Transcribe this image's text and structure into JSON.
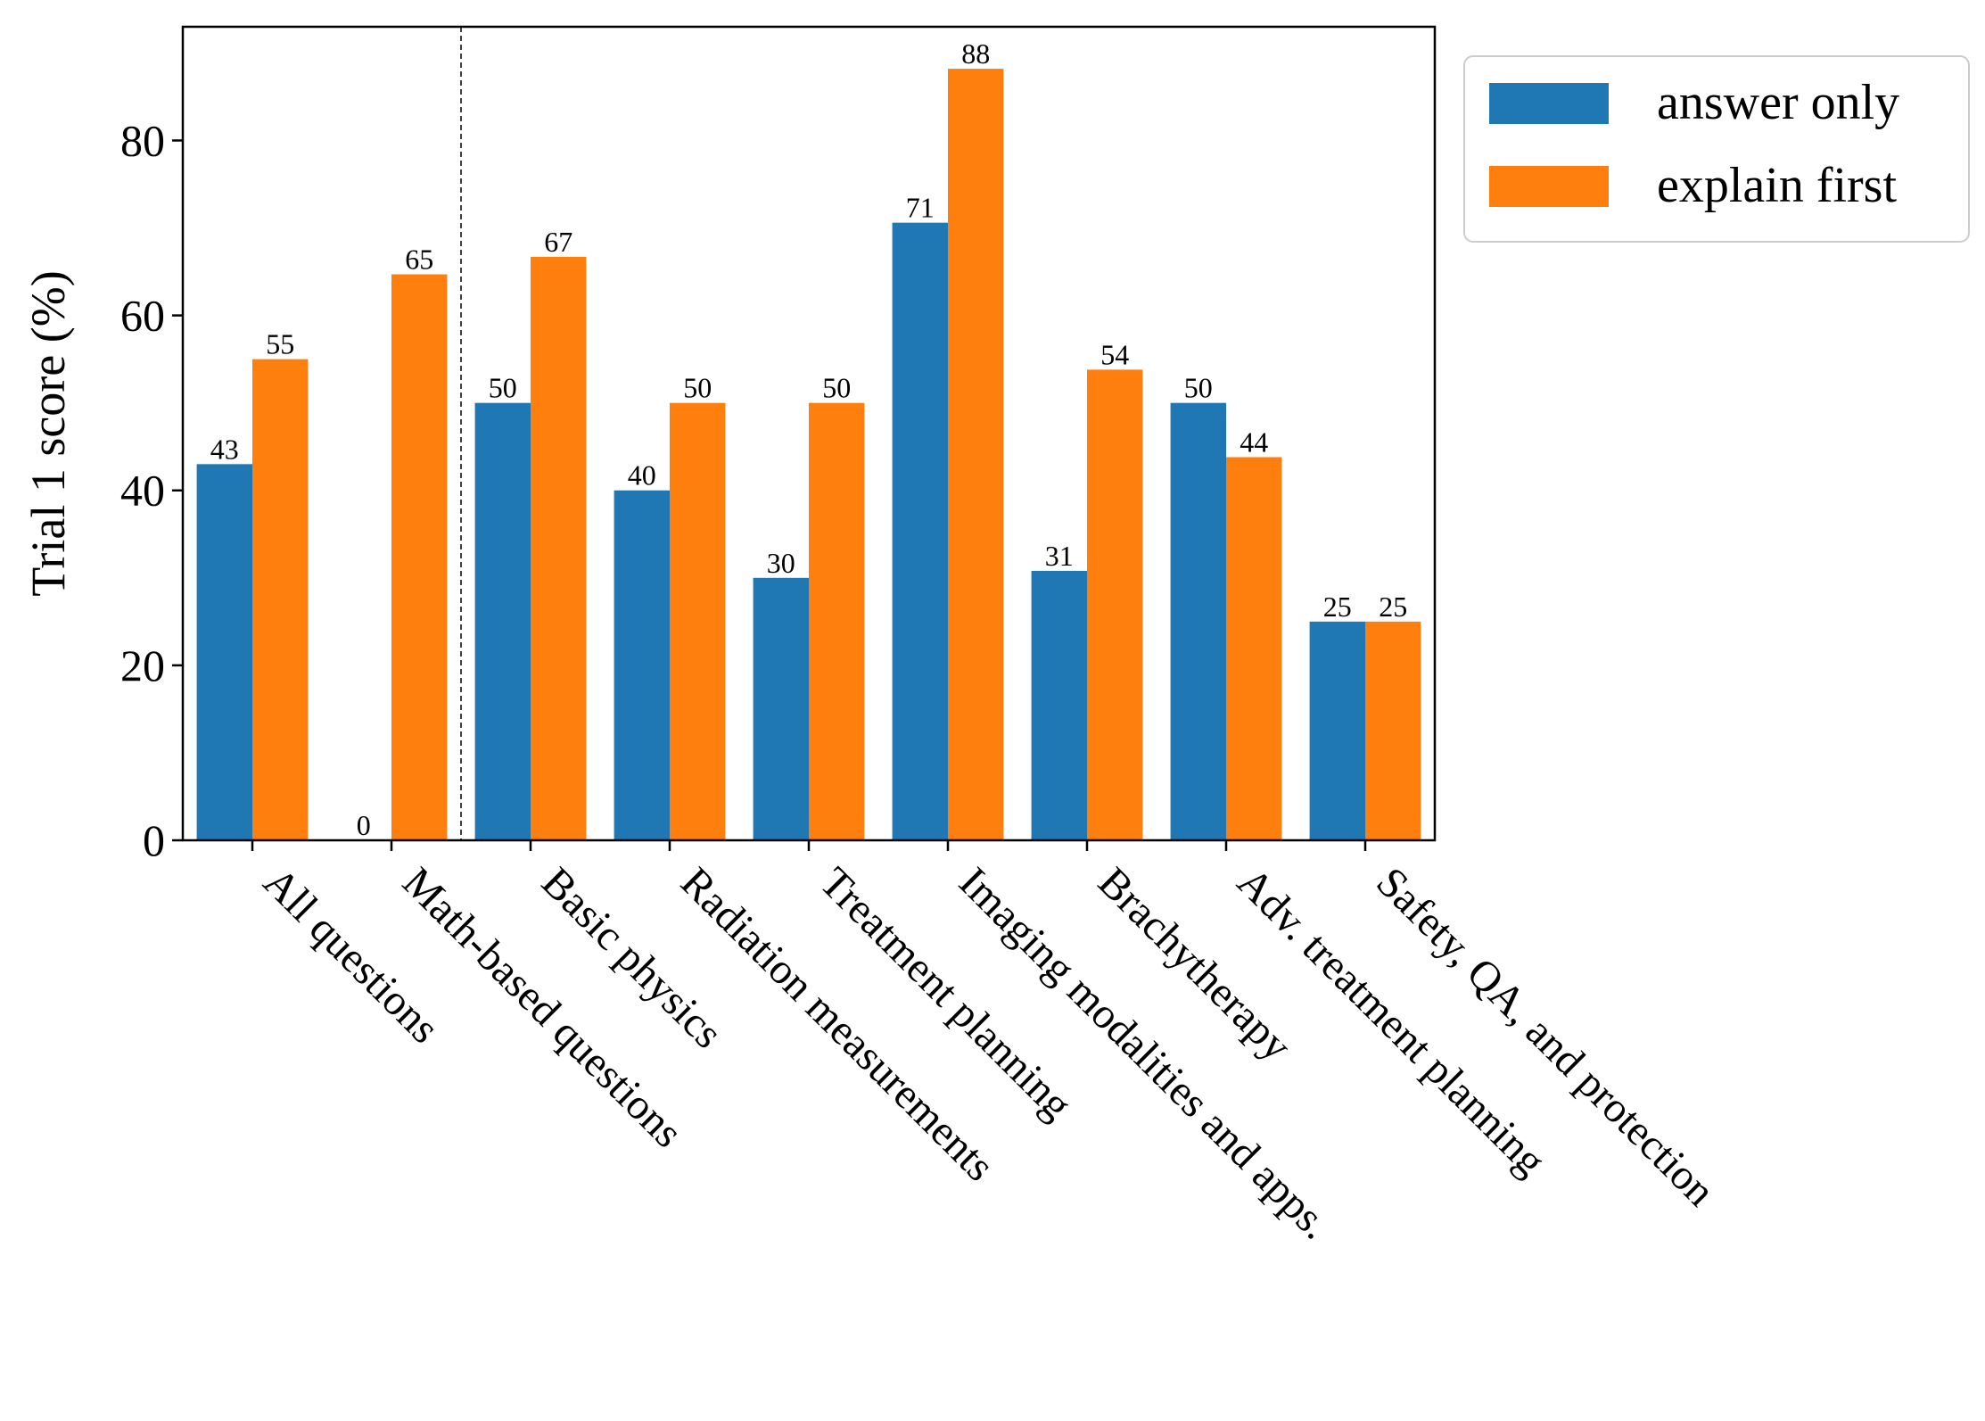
{
  "chart_data": {
    "type": "bar",
    "ylabel": "Trial 1 score (%)",
    "xlabel": "",
    "title": "",
    "ylim": [
      0,
      93
    ],
    "yticks": [
      0,
      20,
      40,
      60,
      80
    ],
    "grid": false,
    "legend_position": "outside-top-right",
    "categories": [
      "All questions",
      "Math-based questions",
      "Basic physics",
      "Radiation measurements",
      "Treatment planning",
      "Imaging modalities and apps.",
      "Brachytherapy",
      "Adv. treatment planning",
      "Safety, QA, and protection"
    ],
    "separator_after_category_index": 1,
    "series": [
      {
        "name": "answer only",
        "color": "#1f77b4",
        "values": [
          43,
          0,
          50,
          40,
          30,
          70.6,
          30.8,
          50,
          25
        ],
        "labels": [
          "43",
          "0",
          "50",
          "40",
          "30",
          "71",
          "31",
          "50",
          "25"
        ]
      },
      {
        "name": "explain first",
        "color": "#ff7f0e",
        "values": [
          55,
          64.7,
          66.7,
          50,
          50,
          88.2,
          53.8,
          43.8,
          25
        ],
        "labels": [
          "55",
          "65",
          "67",
          "50",
          "50",
          "88",
          "54",
          "44",
          "25"
        ]
      }
    ]
  }
}
